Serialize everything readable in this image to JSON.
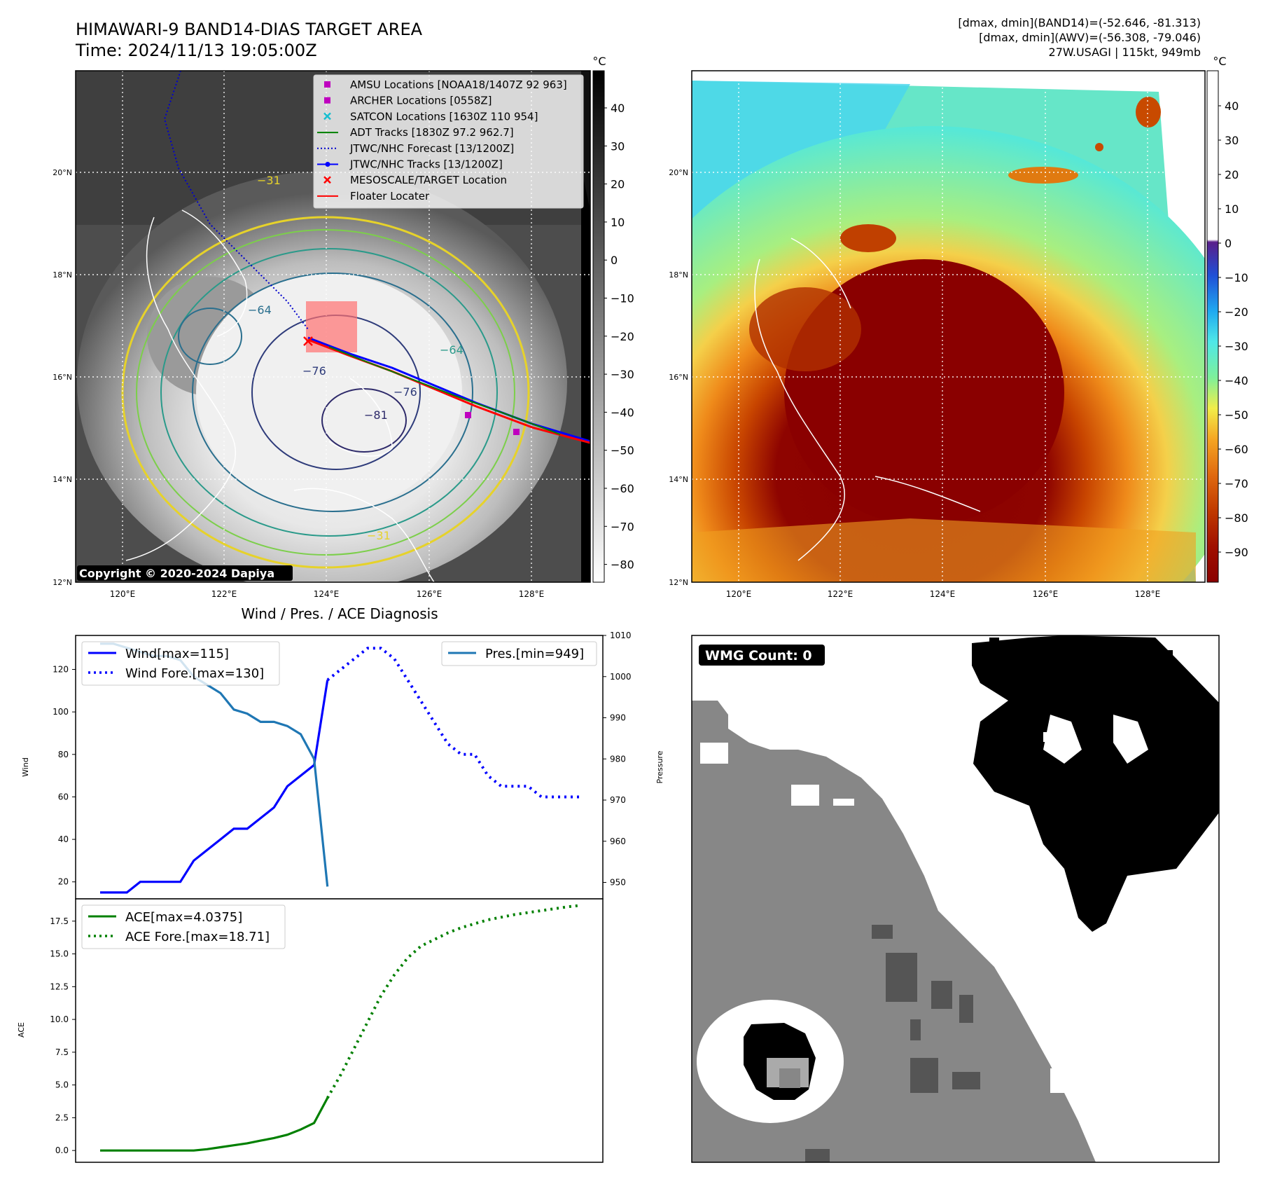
{
  "header": {
    "title_line1": "HIMAWARI-9 BAND14-DIAS TARGET AREA",
    "title_line2": "Time: 2024/11/13 19:05:00Z",
    "info_line1": "[dmax, dmin](BAND14)=(-52.646, -81.313)",
    "info_line2": "[dmax, dmin](AWV)=(-56.308, -79.046)",
    "info_line3": "27W.USAGI | 115kt, 949mb"
  },
  "ir_panel": {
    "colorbar_unit": "°C",
    "colorbar_ticks": [
      "40",
      "30",
      "20",
      "10",
      "0",
      "−10",
      "−20",
      "−30",
      "−40",
      "−50",
      "−60",
      "−70",
      "−80"
    ],
    "lat_labels": [
      "20°N",
      "18°N",
      "16°N",
      "14°N",
      "12°N"
    ],
    "lon_labels": [
      "120°E",
      "122°E",
      "124°E",
      "126°E",
      "128°E"
    ],
    "copyright": "Copyright © 2020-2024 Dapiya",
    "contour_labels": [
      "−31",
      "−64",
      "−76",
      "−81",
      "−64",
      "−76",
      "−31"
    ],
    "legend": [
      {
        "label": "AMSU Locations [NOAA18/1407Z 92 963]",
        "color": "#bf00bf",
        "marker": "square"
      },
      {
        "label": "ARCHER Locations [0558Z]",
        "color": "#bf00bf",
        "marker": "square"
      },
      {
        "label": "SATCON Locations [1630Z 110 954]",
        "color": "#17becf",
        "marker": "x"
      },
      {
        "label": "ADT Tracks [1830Z 97.2 962.7]",
        "color": "#008000",
        "marker": "line"
      },
      {
        "label": "JTWC/NHC Forecast [13/1200Z]",
        "color": "#0000cc",
        "marker": "dotted"
      },
      {
        "label": "JTWC/NHC Tracks [13/1200Z]",
        "color": "#0000ff",
        "marker": "line-dot"
      },
      {
        "label": "MESOSCALE/TARGET Location",
        "color": "#ff0000",
        "marker": "x"
      },
      {
        "label": "Floater Locater",
        "color": "#ff0000",
        "marker": "line"
      }
    ]
  },
  "awv_panel": {
    "colorbar_unit": "°C",
    "colorbar_ticks": [
      "40",
      "30",
      "20",
      "10",
      "0",
      "−10",
      "−20",
      "−30",
      "−40",
      "−50",
      "−60",
      "−70",
      "−80",
      "−90"
    ],
    "lat_labels": [
      "20°N",
      "18°N",
      "16°N",
      "14°N",
      "12°N"
    ],
    "lon_labels": [
      "120°E",
      "122°E",
      "124°E",
      "126°E",
      "128°E"
    ]
  },
  "wmg_panel": {
    "badge": "WMG Count: 0"
  },
  "chart_data": [
    {
      "type": "line",
      "title": "Wind / Pres. / ACE Diagnosis",
      "ylabel": "Wind",
      "y2label": "Pressure",
      "ylim": [
        12,
        136
      ],
      "y2lim": [
        946,
        1010
      ],
      "yticks": [
        20,
        40,
        60,
        80,
        100,
        120
      ],
      "y2ticks": [
        950,
        960,
        970,
        980,
        990,
        1000,
        1010
      ],
      "series": [
        {
          "name": "Wind[max=115]",
          "color": "#0000ff",
          "style": "solid",
          "axis": "left",
          "x": [
            0,
            1,
            2,
            3,
            4,
            5,
            6,
            7,
            8,
            9,
            10,
            11,
            12,
            13,
            14,
            15,
            16,
            17
          ],
          "values": [
            15,
            15,
            15,
            20,
            20,
            20,
            20,
            30,
            35,
            40,
            45,
            45,
            50,
            55,
            65,
            70,
            75,
            115
          ]
        },
        {
          "name": "Wind Fore.[max=130]",
          "color": "#0000ff",
          "style": "dotted",
          "axis": "left",
          "x": [
            17,
            18,
            19,
            20,
            21,
            22,
            23,
            24,
            25,
            26,
            27,
            28,
            29,
            30,
            31,
            32,
            33,
            34,
            35,
            36
          ],
          "values": [
            115,
            120,
            125,
            130,
            130,
            125,
            115,
            105,
            95,
            85,
            80,
            80,
            70,
            65,
            65,
            65,
            60,
            60,
            60,
            60
          ]
        },
        {
          "name": "Pres.[min=949]",
          "color": "#1f77b4",
          "style": "solid",
          "axis": "right",
          "x": [
            0,
            1,
            2,
            3,
            4,
            5,
            6,
            7,
            8,
            9,
            10,
            11,
            12,
            13,
            14,
            15,
            16,
            17
          ],
          "values": [
            1008,
            1008,
            1007,
            1006,
            1005,
            1005,
            1004,
            1000,
            998,
            996,
            992,
            991,
            989,
            989,
            988,
            986,
            980,
            949
          ]
        }
      ]
    },
    {
      "type": "line",
      "ylabel": "ACE",
      "ylim": [
        -0.9,
        19.2
      ],
      "yticks": [
        0.0,
        2.5,
        5.0,
        7.5,
        10.0,
        12.5,
        15.0,
        17.5
      ],
      "ytick_labels": [
        "0.0",
        "2.5",
        "5.0",
        "7.5",
        "10.0",
        "12.5",
        "15.0",
        "17.5"
      ],
      "series": [
        {
          "name": "ACE[max=4.0375]",
          "color": "#008000",
          "style": "solid",
          "x": [
            0,
            1,
            2,
            3,
            4,
            5,
            6,
            7,
            8,
            9,
            10,
            11,
            12,
            13,
            14,
            15,
            16,
            17
          ],
          "values": [
            0,
            0,
            0,
            0,
            0,
            0,
            0,
            0,
            0.1,
            0.25,
            0.4,
            0.55,
            0.75,
            0.95,
            1.2,
            1.6,
            2.1,
            4.0
          ]
        },
        {
          "name": "ACE Fore.[max=18.71]",
          "color": "#008000",
          "style": "dotted",
          "x": [
            17,
            18,
            19,
            20,
            21,
            22,
            23,
            24,
            25,
            26,
            27,
            28,
            29,
            30,
            31,
            32,
            33,
            34,
            35,
            36
          ],
          "values": [
            4.0,
            5.8,
            7.8,
            9.8,
            11.8,
            13.4,
            14.7,
            15.6,
            16.1,
            16.6,
            17.0,
            17.3,
            17.6,
            17.8,
            18.0,
            18.15,
            18.3,
            18.45,
            18.6,
            18.71
          ]
        }
      ]
    }
  ]
}
